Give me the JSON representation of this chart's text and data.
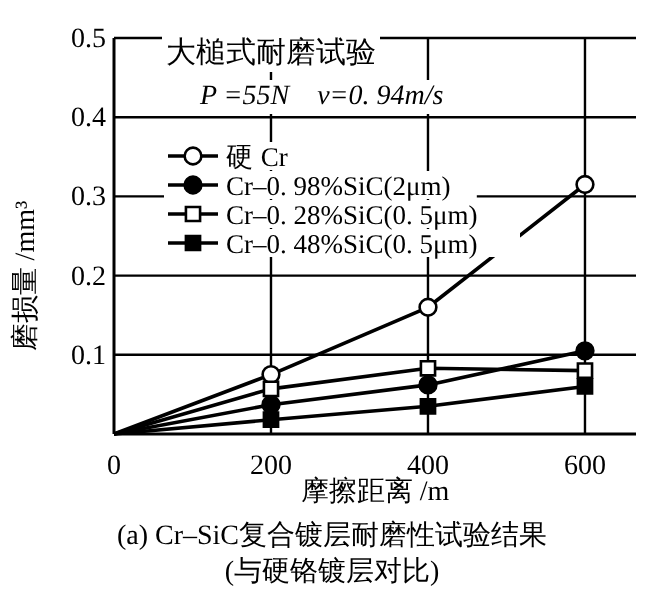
{
  "chart_data": {
    "type": "line",
    "xlabel": "摩擦距离 /m",
    "ylabel": "磨损量 /mm³",
    "x": [
      0,
      200,
      400,
      600
    ],
    "xlim": [
      0,
      665
    ],
    "xticks": [
      0,
      200,
      400,
      600
    ],
    "ylim": [
      0,
      0.5
    ],
    "yticks": [
      0.1,
      0.2,
      0.3,
      0.4,
      0.5
    ],
    "grid": true,
    "legend": "top left",
    "line_style": "solid",
    "series": [
      {
        "name": "硬  Cr",
        "color": "#000000",
        "marker": "circle",
        "values": [
          0,
          0.075,
          0.16,
          0.315
        ]
      },
      {
        "name": "Cr–0. 98%SiC(2μm)",
        "color": "#000000",
        "marker": "circle",
        "values": [
          0,
          0.037,
          0.062,
          0.105
        ]
      },
      {
        "name": "Cr–0. 28%SiC(0. 5μm)",
        "color": "#000000",
        "marker": "square",
        "values": [
          0,
          0.057,
          0.083,
          0.08
        ]
      },
      {
        "name": "Cr–0. 48%SiC(0. 5μm)",
        "color": "#000000",
        "marker": "square",
        "values": [
          0,
          0.018,
          0.035,
          0.06
        ]
      }
    ],
    "annotations": [
      "大槌式耐磨试验",
      "P =55N    v=0. 94m/s",
      "(a) Cr–SiC复合镀层耐磨性试验结果",
      "(与硬铬镀层对比)"
    ]
  }
}
